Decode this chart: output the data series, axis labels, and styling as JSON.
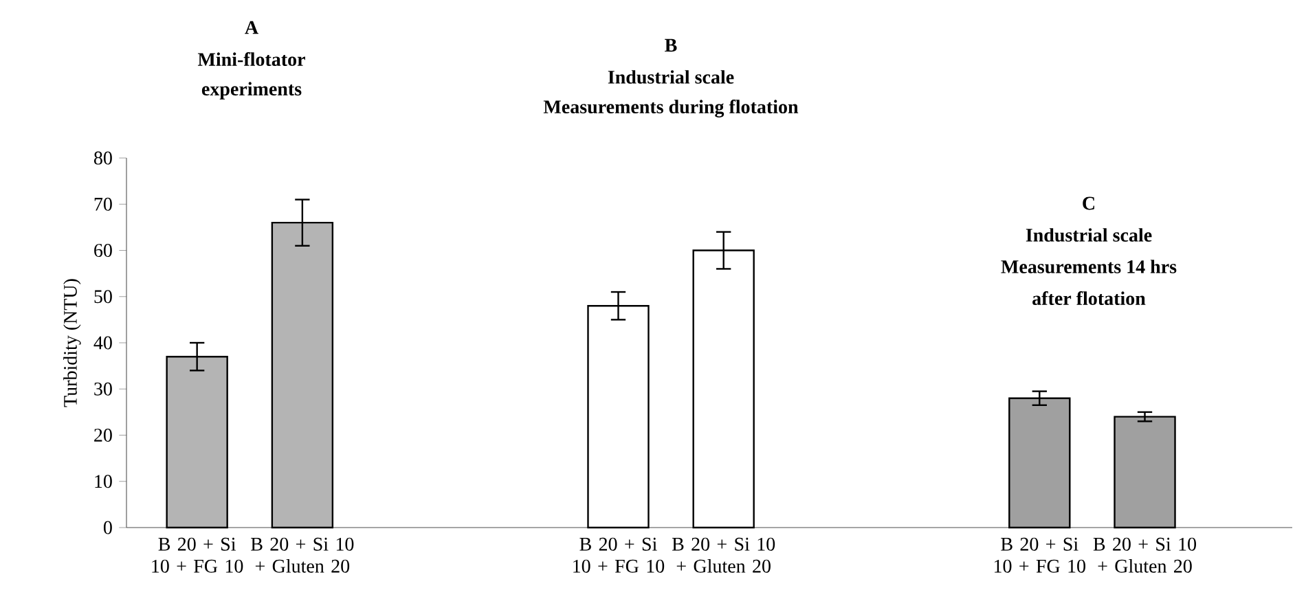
{
  "chart_data": {
    "type": "bar",
    "ylabel": "Turbidity (NTU)",
    "annotations": [
      "A",
      "Mini-flotator",
      "experiments",
      "B",
      "Industrial scale",
      "Measurements during flotation",
      "C",
      "Industrial scale",
      "Measurements 14 hrs",
      "after flotation"
    ],
    "categories": [
      "B 20 + Si 10 + FG 10",
      "B 20 + Si 10 + Gluten 20",
      null,
      null,
      "B 20 + Si 10 + FG 10",
      "B 20 + Si 10 + Gluten 20",
      null,
      null,
      "B 20 + Si 10 + FG 10",
      "B 20 + Si 10 + Gluten 20"
    ],
    "series": [
      {
        "color": "#b4b4b4",
        "values": [
          37,
          66,
          null,
          null,
          null,
          null,
          null,
          null,
          null,
          null
        ],
        "errors": [
          3,
          5,
          null,
          null,
          null,
          null,
          null,
          null,
          null,
          null
        ]
      },
      {
        "color": "#ffffff",
        "values": [
          null,
          null,
          null,
          null,
          48,
          60,
          null,
          null,
          null,
          null
        ],
        "errors": [
          null,
          null,
          null,
          null,
          3,
          4,
          null,
          null,
          null,
          null
        ]
      },
      {
        "color": "#a0a0a0",
        "values": [
          null,
          null,
          null,
          null,
          null,
          null,
          null,
          null,
          28,
          24
        ],
        "errors": [
          null,
          null,
          null,
          null,
          null,
          null,
          null,
          null,
          1.5,
          1
        ]
      }
    ],
    "ylim": [
      0,
      80
    ],
    "yticks": [
      0,
      10,
      20,
      30,
      40,
      50,
      60,
      70,
      80
    ]
  }
}
